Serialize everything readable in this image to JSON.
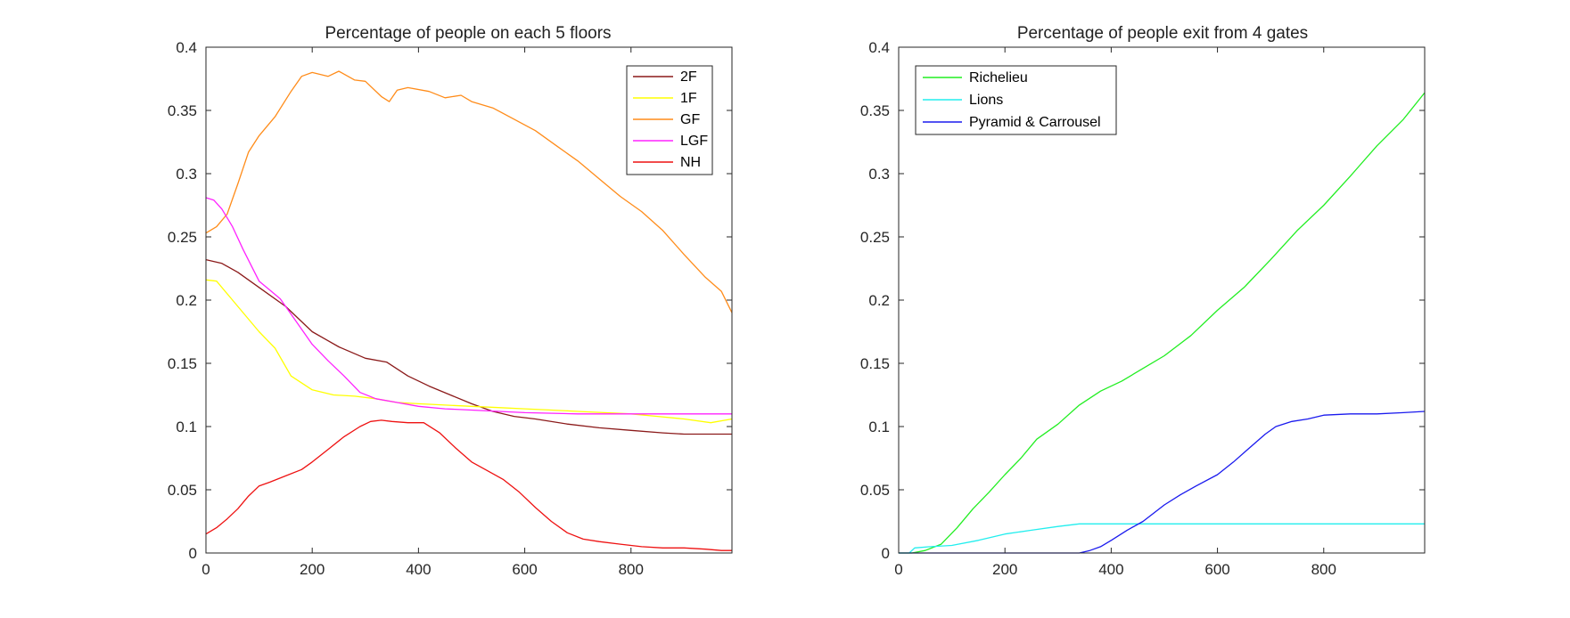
{
  "chart_data": [
    {
      "type": "line",
      "title": "Percentage of people on each 5 floors",
      "xlabel": "",
      "ylabel": "",
      "xlim": [
        0,
        990
      ],
      "ylim": [
        0,
        0.4
      ],
      "xticks": [
        0,
        200,
        400,
        600,
        800
      ],
      "yticks": [
        0,
        0.05,
        0.1,
        0.15,
        0.2,
        0.25,
        0.3,
        0.35,
        0.4
      ],
      "xtick_labels": [
        "0",
        "200",
        "400",
        "600",
        "800"
      ],
      "ytick_labels": [
        "0",
        "0.05",
        "0.1",
        "0.15",
        "0.2",
        "0.25",
        "0.3",
        "0.35",
        "0.4"
      ],
      "grid": false,
      "legend_position": "top-right",
      "series": [
        {
          "name": "2F",
          "color": "#8b1a1a",
          "x": [
            0,
            30,
            60,
            100,
            150,
            200,
            250,
            300,
            340,
            380,
            420,
            460,
            500,
            540,
            580,
            620,
            680,
            740,
            800,
            860,
            900,
            990
          ],
          "y": [
            0.232,
            0.229,
            0.222,
            0.21,
            0.195,
            0.175,
            0.163,
            0.154,
            0.151,
            0.14,
            0.132,
            0.125,
            0.118,
            0.112,
            0.108,
            0.106,
            0.102,
            0.099,
            0.097,
            0.095,
            0.094,
            0.094
          ]
        },
        {
          "name": "1F",
          "color": "#ffff00",
          "x": [
            0,
            20,
            50,
            100,
            130,
            160,
            200,
            240,
            280,
            320,
            360,
            400,
            450,
            500,
            550,
            600,
            650,
            700,
            750,
            800,
            850,
            900,
            950,
            990
          ],
          "y": [
            0.216,
            0.215,
            0.2,
            0.175,
            0.162,
            0.14,
            0.129,
            0.125,
            0.124,
            0.122,
            0.119,
            0.118,
            0.117,
            0.116,
            0.115,
            0.114,
            0.113,
            0.112,
            0.111,
            0.11,
            0.108,
            0.106,
            0.103,
            0.106
          ]
        },
        {
          "name": "GF",
          "color": "#ff8c1a",
          "x": [
            0,
            20,
            40,
            60,
            80,
            100,
            130,
            160,
            180,
            200,
            230,
            250,
            280,
            300,
            330,
            345,
            360,
            380,
            420,
            450,
            480,
            500,
            540,
            580,
            620,
            660,
            700,
            740,
            780,
            820,
            860,
            900,
            940,
            970,
            990
          ],
          "y": [
            0.253,
            0.258,
            0.268,
            0.292,
            0.317,
            0.33,
            0.345,
            0.365,
            0.377,
            0.38,
            0.377,
            0.381,
            0.374,
            0.373,
            0.361,
            0.357,
            0.366,
            0.368,
            0.365,
            0.36,
            0.362,
            0.357,
            0.352,
            0.343,
            0.334,
            0.322,
            0.31,
            0.296,
            0.282,
            0.27,
            0.255,
            0.236,
            0.218,
            0.207,
            0.19
          ]
        },
        {
          "name": "LGF",
          "color": "#ff22ff",
          "x": [
            0,
            15,
            30,
            50,
            70,
            100,
            120,
            140,
            170,
            200,
            230,
            260,
            290,
            320,
            360,
            400,
            450,
            500,
            600,
            700,
            800,
            990
          ],
          "y": [
            0.281,
            0.279,
            0.272,
            0.258,
            0.24,
            0.215,
            0.208,
            0.201,
            0.183,
            0.165,
            0.152,
            0.14,
            0.127,
            0.122,
            0.119,
            0.116,
            0.114,
            0.113,
            0.111,
            0.11,
            0.11,
            0.11
          ]
        },
        {
          "name": "NH",
          "color": "#ee1111",
          "x": [
            0,
            20,
            40,
            60,
            80,
            100,
            120,
            150,
            180,
            200,
            230,
            260,
            290,
            310,
            330,
            350,
            380,
            410,
            440,
            470,
            500,
            530,
            560,
            590,
            620,
            650,
            680,
            710,
            740,
            780,
            820,
            860,
            900,
            940,
            970,
            990
          ],
          "y": [
            0.015,
            0.02,
            0.027,
            0.035,
            0.045,
            0.053,
            0.056,
            0.061,
            0.066,
            0.072,
            0.082,
            0.092,
            0.1,
            0.104,
            0.105,
            0.104,
            0.103,
            0.103,
            0.095,
            0.083,
            0.072,
            0.065,
            0.058,
            0.048,
            0.036,
            0.025,
            0.016,
            0.011,
            0.009,
            0.007,
            0.005,
            0.004,
            0.004,
            0.003,
            0.002,
            0.002
          ]
        }
      ]
    },
    {
      "type": "line",
      "title": "Percentage of people exit from 4 gates",
      "xlabel": "",
      "ylabel": "",
      "xlim": [
        0,
        990
      ],
      "ylim": [
        0,
        0.4
      ],
      "xticks": [
        0,
        200,
        400,
        600,
        800
      ],
      "yticks": [
        0,
        0.05,
        0.1,
        0.15,
        0.2,
        0.25,
        0.3,
        0.35,
        0.4
      ],
      "xtick_labels": [
        "0",
        "200",
        "400",
        "600",
        "800"
      ],
      "ytick_labels": [
        "0",
        "0.05",
        "0.1",
        "0.15",
        "0.2",
        "0.25",
        "0.3",
        "0.35",
        "0.4"
      ],
      "grid": false,
      "legend_position": "top-left",
      "series": [
        {
          "name": "Richelieu",
          "color": "#22ee22",
          "x": [
            0,
            25,
            50,
            80,
            110,
            140,
            170,
            200,
            230,
            260,
            300,
            340,
            380,
            420,
            460,
            500,
            550,
            600,
            650,
            700,
            750,
            800,
            850,
            900,
            950,
            990
          ],
          "y": [
            0,
            0,
            0.002,
            0.007,
            0.02,
            0.035,
            0.048,
            0.062,
            0.075,
            0.09,
            0.102,
            0.117,
            0.128,
            0.136,
            0.146,
            0.156,
            0.172,
            0.192,
            0.21,
            0.232,
            0.255,
            0.275,
            0.298,
            0.322,
            0.343,
            0.364
          ]
        },
        {
          "name": "Lions",
          "color": "#22eeee",
          "x": [
            0,
            20,
            30,
            60,
            100,
            150,
            200,
            250,
            300,
            340,
            400,
            500,
            600,
            700,
            800,
            990
          ],
          "y": [
            0,
            0,
            0.004,
            0.005,
            0.006,
            0.01,
            0.015,
            0.018,
            0.021,
            0.023,
            0.023,
            0.023,
            0.023,
            0.023,
            0.023,
            0.023
          ]
        },
        {
          "name": "Pyramid & Carrousel",
          "color": "#1a1aee",
          "x": [
            0,
            100,
            200,
            300,
            340,
            360,
            380,
            400,
            430,
            460,
            500,
            530,
            560,
            600,
            630,
            660,
            690,
            710,
            740,
            770,
            800,
            850,
            900,
            950,
            990
          ],
          "y": [
            0,
            0,
            0,
            0,
            0,
            0.002,
            0.005,
            0.01,
            0.018,
            0.025,
            0.038,
            0.046,
            0.053,
            0.062,
            0.072,
            0.083,
            0.094,
            0.1,
            0.104,
            0.106,
            0.109,
            0.11,
            0.11,
            0.111,
            0.112
          ]
        }
      ]
    }
  ]
}
